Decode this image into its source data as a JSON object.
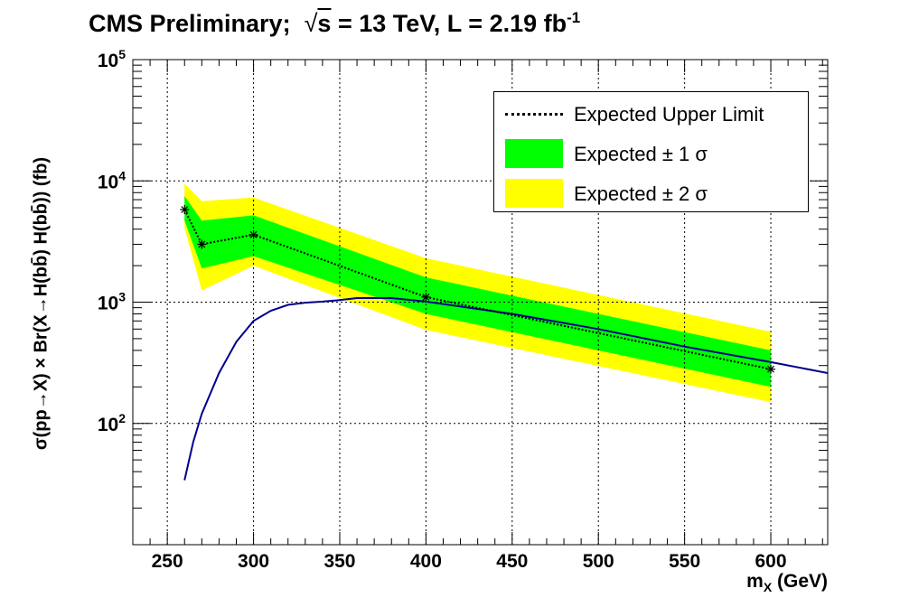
{
  "title": {
    "experiment": "CMS Preliminary;",
    "energy_prefix": "s",
    "energy": " = 13 TeV, L = 2.19 fb",
    "lumi_exponent": "-1"
  },
  "colors": {
    "band_1sigma": "#00ff00",
    "band_2sigma": "#ffff00",
    "theory_line": "#00008b",
    "expected_line": "#000000",
    "grid": "#000000"
  },
  "chart_data": {
    "type": "line",
    "xlabel": "m_X (GeV)",
    "xlabel_main": "m",
    "xlabel_sub": "X",
    "xlabel_unit": " (GeV)",
    "ylabel": "σ(pp→X) × Br(X→H(bb̄) H(bb̄)) (fb)",
    "xlim": [
      230,
      633
    ],
    "ylim": [
      10,
      100000
    ],
    "yscale": "log",
    "grid": true,
    "legend_position": "top-right",
    "x_ticks": [
      250,
      300,
      350,
      400,
      450,
      500,
      550,
      600
    ],
    "y_ticks": [
      {
        "value": 100,
        "label": "10",
        "exp": "2"
      },
      {
        "value": 1000,
        "label": "10",
        "exp": "3"
      },
      {
        "value": 10000,
        "label": "10",
        "exp": "4"
      },
      {
        "value": 100000,
        "label": "10",
        "exp": "5"
      }
    ],
    "legend": [
      {
        "label": "Expected Upper Limit",
        "kind": "dotted-line"
      },
      {
        "label": "Expected ± 1 σ",
        "kind": "green-box"
      },
      {
        "label": "Expected ± 2 σ",
        "kind": "yellow-box"
      }
    ],
    "masses": [
      260,
      270,
      300,
      400,
      600
    ],
    "expected": [
      5800,
      3000,
      3600,
      1100,
      280
    ],
    "band_1sigma": {
      "low": [
        4700,
        1900,
        2400,
        800,
        200
      ],
      "high": [
        7500,
        4700,
        5200,
        1600,
        400
      ]
    },
    "band_2sigma": {
      "low": [
        4100,
        1250,
        2000,
        590,
        150
      ],
      "high": [
        9500,
        6800,
        7300,
        2300,
        570
      ]
    },
    "theory_curve": {
      "x": [
        260,
        265,
        270,
        280,
        290,
        300,
        310,
        320,
        330,
        340,
        350,
        360,
        380,
        400,
        450,
        500,
        550,
        600,
        633
      ],
      "y": [
        34,
        70,
        120,
        260,
        470,
        700,
        850,
        950,
        990,
        1010,
        1040,
        1080,
        1080,
        1010,
        800,
        600,
        430,
        320,
        260
      ]
    }
  }
}
